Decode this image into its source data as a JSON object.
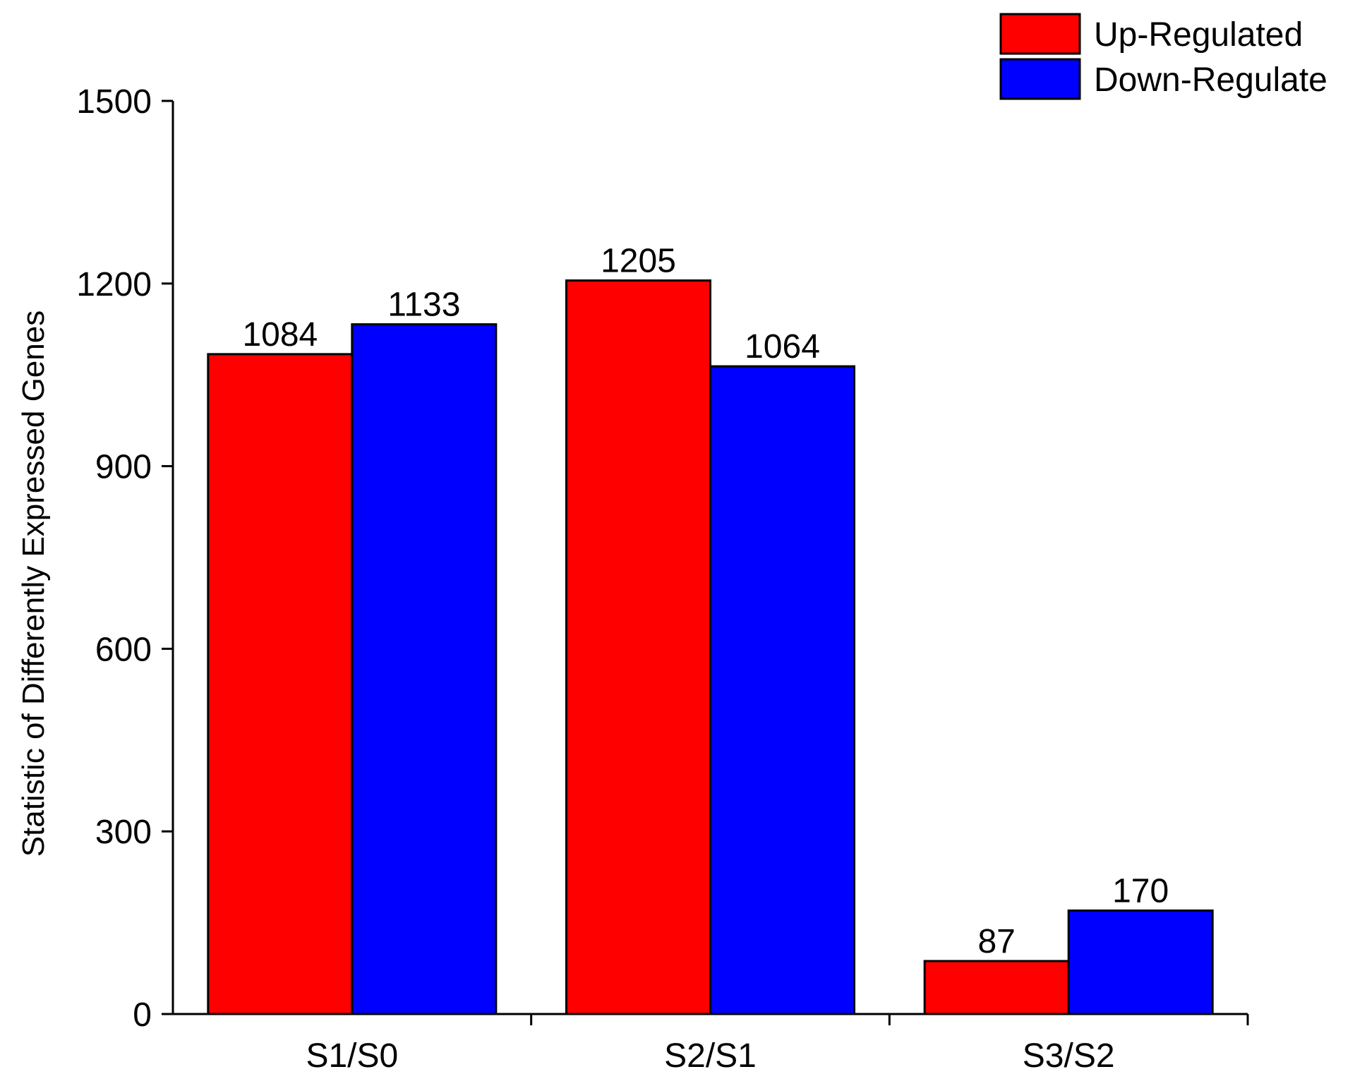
{
  "chart_data": {
    "type": "bar",
    "categories": [
      "S1/S0",
      "S2/S1",
      "S3/S2"
    ],
    "series": [
      {
        "name": "Up-Regulated",
        "color": "#ff0000",
        "values": [
          1084,
          1205,
          87
        ]
      },
      {
        "name": "Down-Regulate",
        "color": "#0000ff",
        "values": [
          1133,
          1064,
          170
        ]
      }
    ],
    "xlabel": "",
    "ylabel": "Statistic of Differently Expressed Genes",
    "ylim": [
      0,
      1500
    ],
    "yticks": [
      0,
      300,
      600,
      900,
      1200,
      1500
    ],
    "grid": false,
    "legend": "top-right"
  }
}
